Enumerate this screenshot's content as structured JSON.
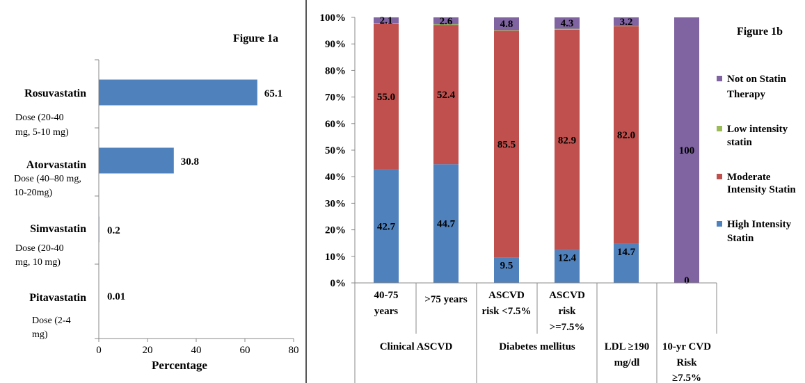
{
  "figure_1a": {
    "title": "Figure 1a",
    "xlabel": "Percentage",
    "bar_color": "#4f81bd",
    "chart_data": {
      "type": "bar",
      "orientation": "horizontal",
      "categories": [
        "Rosuvastatin",
        "Atorvastatin",
        "Simvastatin",
        "Pitavastatin"
      ],
      "dose_labels": [
        [
          "Dose (20-40",
          "mg, 5-10 mg)"
        ],
        [
          "Dose (40–80 mg,",
          "10-20mg)"
        ],
        [
          "Dose (20-40",
          "mg, 10 mg)"
        ],
        [
          "Dose (2-4",
          "mg)"
        ]
      ],
      "values": [
        65.1,
        30.8,
        0.2,
        0.01
      ],
      "data_labels": [
        "65.1",
        "30.8",
        "0.2",
        "0.01"
      ],
      "xlim": [
        0,
        80
      ],
      "xticks": [
        0,
        20,
        40,
        60,
        80
      ],
      "grid": false
    }
  },
  "figure_1b": {
    "title": "Figure 1b",
    "chart_data": {
      "type": "bar",
      "stacked": true,
      "categories": [
        [
          "40-75",
          "years"
        ],
        [
          ">75 years"
        ],
        [
          "ASCVD",
          "risk <7.5%"
        ],
        [
          "ASCVD",
          "risk",
          ">=7.5%"
        ],
        [],
        []
      ],
      "groups": [
        {
          "label": [
            "Clinical ASCVD"
          ],
          "span": [
            0,
            1
          ]
        },
        {
          "label": [
            "Diabetes mellitus"
          ],
          "span": [
            2,
            3
          ]
        },
        {
          "label": [
            "LDL ≥190",
            "mg/dl"
          ],
          "span": [
            4,
            4
          ]
        },
        {
          "label": [
            "10-yr CVD",
            "Risk",
            "≥7.5%"
          ],
          "span": [
            5,
            5
          ]
        }
      ],
      "series": [
        {
          "name": "High Intensity Statin",
          "color": "#4f81bd",
          "values": [
            42.7,
            44.7,
            9.5,
            12.4,
            14.7,
            0
          ],
          "labels": [
            "42.7",
            "44.7",
            "9.5",
            "12.4",
            "14.7",
            "0"
          ]
        },
        {
          "name": "Moderate Intensity Statin",
          "color": "#c0504d",
          "values": [
            55.0,
            52.4,
            85.5,
            82.9,
            82.0,
            0
          ],
          "labels": [
            "55.0",
            "52.4",
            "85.5",
            "82.9",
            "82.0",
            ""
          ]
        },
        {
          "name": "Low intensity statin",
          "color": "#9bbb59",
          "values": [
            0.2,
            0.3,
            0.2,
            0.4,
            0.1,
            0
          ],
          "labels": [
            "",
            "",
            "",
            "",
            "",
            ""
          ]
        },
        {
          "name": "Not on Statin Therapy",
          "color": "#8064a2",
          "values": [
            2.1,
            2.6,
            4.8,
            4.3,
            3.2,
            100
          ],
          "labels": [
            "2.1",
            "2.6",
            "4.8",
            "4.3",
            "3.2",
            "100"
          ]
        }
      ],
      "legend": {
        "placement": "right",
        "entries": [
          {
            "series": 3,
            "lines": [
              "Not on Statin",
              "Therapy"
            ]
          },
          {
            "series": 2,
            "lines": [
              "Low intensity",
              "statin"
            ]
          },
          {
            "series": 1,
            "lines": [
              "Moderate",
              "Intensity Statin"
            ]
          },
          {
            "series": 0,
            "lines": [
              "High Intensity",
              "Statin"
            ]
          }
        ]
      },
      "yticks": [
        "0%",
        "10%",
        "20%",
        "30%",
        "40%",
        "50%",
        "60%",
        "70%",
        "80%",
        "90%",
        "100%"
      ],
      "ylim": [
        0,
        100
      ],
      "grid": false
    }
  }
}
